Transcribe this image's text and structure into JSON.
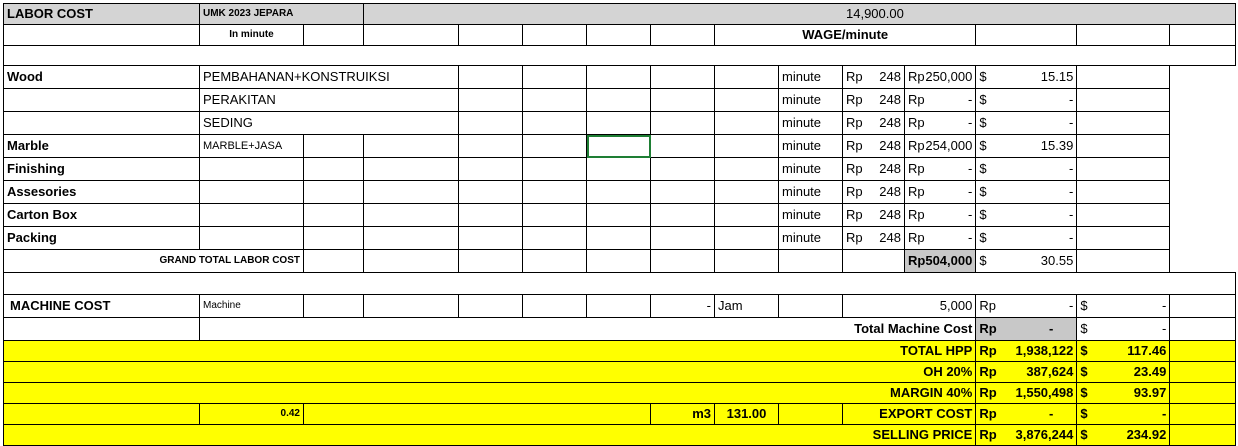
{
  "header": {
    "title": "LABOR COST",
    "umk_label": "UMK 2023 JEPARA",
    "umk_value": "14,900.00",
    "in_minute": "In minute",
    "wage_minute": "WAGE/minute"
  },
  "labor_rows": [
    {
      "category": "Wood",
      "item": "PEMBAHANAN+KONSTRUIKSI",
      "unit": "minute",
      "rp1": "Rp",
      "rate": "248",
      "rp2": "Rp",
      "amount": "250,000",
      "cur": "$",
      "usd": "15.15"
    },
    {
      "category": "",
      "item": "PERAKITAN",
      "unit": "minute",
      "rp1": "Rp",
      "rate": "248",
      "rp2": "Rp",
      "amount": "-",
      "cur": "$",
      "usd": "-"
    },
    {
      "category": "",
      "item": "SEDING",
      "unit": "minute",
      "rp1": "Rp",
      "rate": "248",
      "rp2": "Rp",
      "amount": "-",
      "cur": "$",
      "usd": "-"
    },
    {
      "category": "Marble",
      "item": "MARBLE+JASA",
      "unit": "minute",
      "rp1": "Rp",
      "rate": "248",
      "rp2": "Rp",
      "amount": "254,000",
      "cur": "$",
      "usd": "15.39"
    },
    {
      "category": "Finishing",
      "item": "",
      "unit": "minute",
      "rp1": "Rp",
      "rate": "248",
      "rp2": "Rp",
      "amount": "-",
      "cur": "$",
      "usd": "-"
    },
    {
      "category": "Assesories",
      "item": "",
      "unit": "minute",
      "rp1": "Rp",
      "rate": "248",
      "rp2": "Rp",
      "amount": "-",
      "cur": "$",
      "usd": "-"
    },
    {
      "category": "Carton Box",
      "item": "",
      "unit": "minute",
      "rp1": "Rp",
      "rate": "248",
      "rp2": "Rp",
      "amount": "-",
      "cur": "$",
      "usd": "-"
    },
    {
      "category": "Packing",
      "item": "",
      "unit": "minute",
      "rp1": "Rp",
      "rate": "248",
      "rp2": "Rp",
      "amount": "-",
      "cur": "$",
      "usd": "-"
    }
  ],
  "grand_total": {
    "label": "GRAND TOTAL LABOR COST",
    "rp": "Rp",
    "amount": "504,000",
    "cur": "$",
    "usd": "30.55"
  },
  "machine": {
    "title": "MACHINE COST",
    "label": "Machine",
    "dash": "-",
    "unit": "Jam",
    "rate": "5,000",
    "rp": "Rp",
    "amount": "-",
    "cur": "$",
    "usd": "-",
    "total_label": "Total Machine Cost",
    "total_rp": "Rp",
    "total_amount": "-",
    "total_cur": "$",
    "total_usd": "-"
  },
  "summary": [
    {
      "label": "TOTAL HPP",
      "rp": "Rp",
      "amount": "1,938,122",
      "cur": "$",
      "usd": "117.46"
    },
    {
      "label": "OH 20%",
      "rp": "Rp",
      "amount": "387,624",
      "cur": "$",
      "usd": "23.49"
    },
    {
      "label": "MARGIN 40%",
      "rp": "Rp",
      "amount": "1,550,498",
      "cur": "$",
      "usd": "93.97"
    }
  ],
  "export": {
    "cbm": "0.42",
    "unit": "m3",
    "rate": "131.00",
    "label": "EXPORT COST",
    "rp": "Rp",
    "amount": "-",
    "cur": "$",
    "usd": "-"
  },
  "selling": {
    "label": "SELLING PRICE",
    "rp": "Rp",
    "amount": "3,876,244",
    "cur": "$",
    "usd": "234.92"
  },
  "colors": {
    "highlight": "#ffff00",
    "header": "#d4d4d4",
    "total_fill": "#c8c8c8",
    "selection": "#1e7e34"
  }
}
